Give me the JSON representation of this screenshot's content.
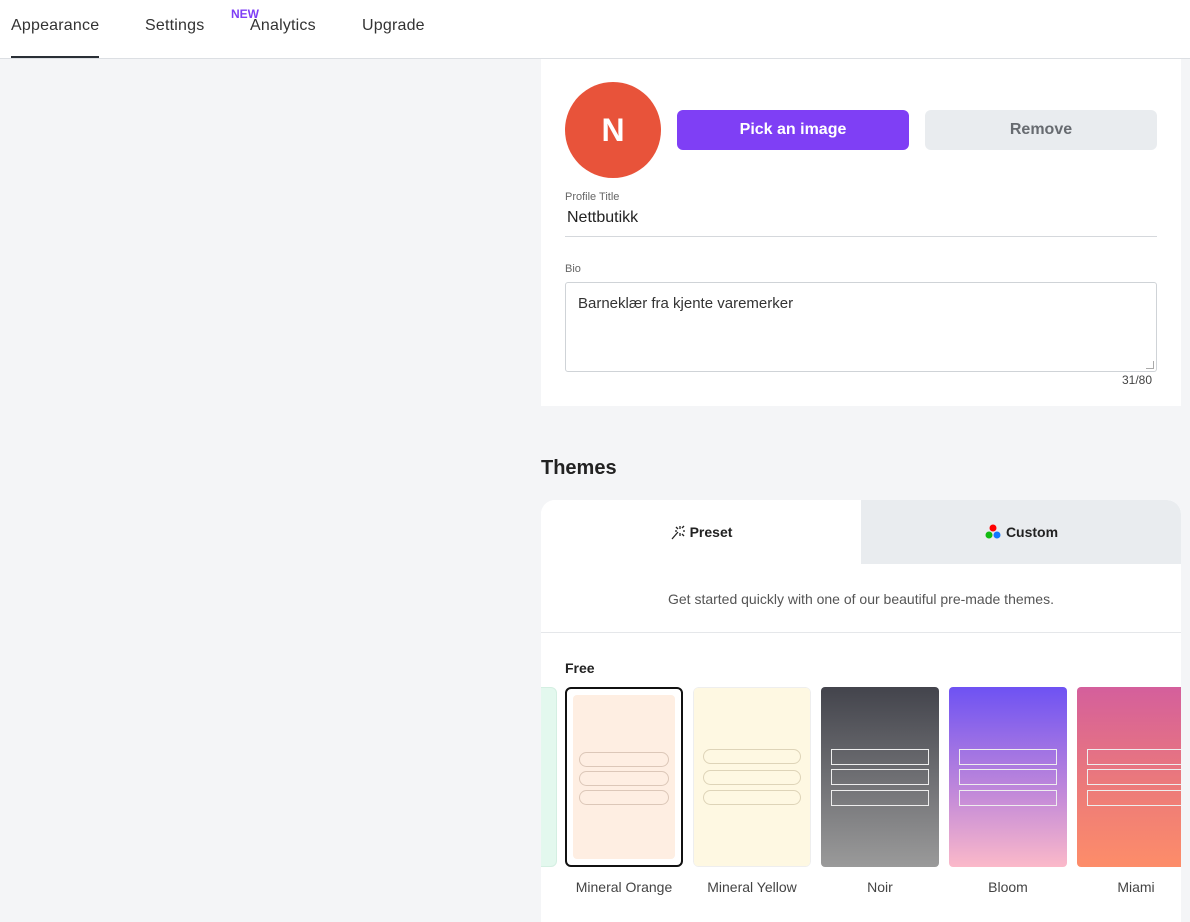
{
  "nav": {
    "tabs": [
      {
        "label": "Appearance",
        "active": true
      },
      {
        "label": "Settings"
      },
      {
        "label": "Analytics",
        "badge": "NEW"
      },
      {
        "label": "Upgrade"
      }
    ]
  },
  "profile": {
    "avatar_initial": "N",
    "avatar_color": "#e8533a",
    "pick_label": "Pick an image",
    "remove_label": "Remove",
    "title_label": "Profile Title",
    "title_value": "Nettbutikk",
    "bio_label": "Bio",
    "bio_value": "Barneklær fra kjente varemerker",
    "bio_count": "31/80"
  },
  "themes": {
    "heading": "Themes",
    "tabs": [
      {
        "label": "Preset",
        "icon": "magic-wand-icon",
        "active": true
      },
      {
        "label": "Custom",
        "icon": "color-dots-icon"
      }
    ],
    "description": "Get started quickly with one of our beautiful pre-made themes.",
    "section": "Free",
    "items": [
      {
        "name": "Mineral Orange",
        "selected": true
      },
      {
        "name": "Mineral Yellow"
      },
      {
        "name": "Noir"
      },
      {
        "name": "Bloom"
      },
      {
        "name": "Miami"
      }
    ]
  },
  "colors": {
    "accent": "#7f3ff5"
  }
}
